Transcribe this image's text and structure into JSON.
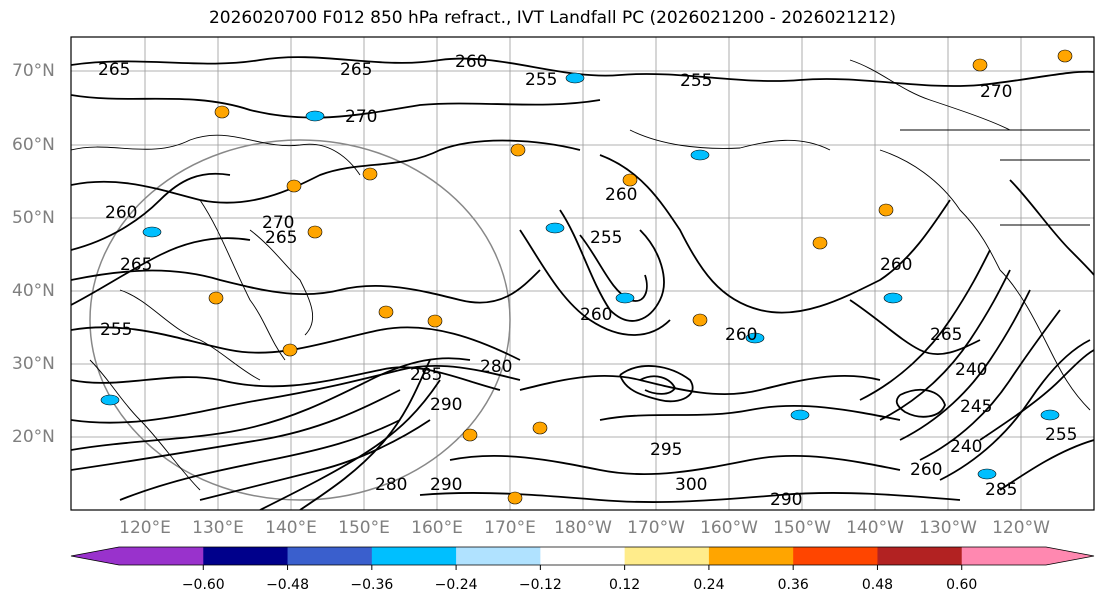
{
  "title": "2026020700 F012 850 hPa refract., IVT Landfall PC (2026021200 - 2026021212)",
  "latitude_labels": [
    "70°N",
    "60°N",
    "50°N",
    "40°N",
    "30°N",
    "20°N"
  ],
  "longitude_labels": [
    "120°E",
    "130°E",
    "140°E",
    "150°E",
    "160°E",
    "170°E",
    "180°W",
    "170°W",
    "160°W",
    "150°W",
    "140°W",
    "130°W",
    "120°W"
  ],
  "contour_labels": [
    "265",
    "265",
    "260",
    "255",
    "255",
    "270",
    "270",
    "260",
    "270",
    "265",
    "265",
    "255",
    "260",
    "260",
    "260",
    "255",
    "265",
    "260",
    "240",
    "245",
    "240",
    "260",
    "255",
    "280",
    "285",
    "290",
    "295",
    "290",
    "300",
    "280",
    "285",
    "290"
  ],
  "colorbar": {
    "tick_labels": [
      "−0.60",
      "−0.48",
      "−0.36",
      "−0.24",
      "−0.12",
      "0.12",
      "0.24",
      "0.36",
      "0.48",
      "0.60"
    ],
    "under_color": "#9932cc",
    "over_color": "#ff88b0",
    "colors": [
      "#9932cc",
      "#00008b",
      "#3a5fcd",
      "#00bfff",
      "#b0e2ff",
      "#ffffff",
      "#ffec8b",
      "#ffa500",
      "#ff4500",
      "#b22222",
      "#ff88b0"
    ]
  }
}
